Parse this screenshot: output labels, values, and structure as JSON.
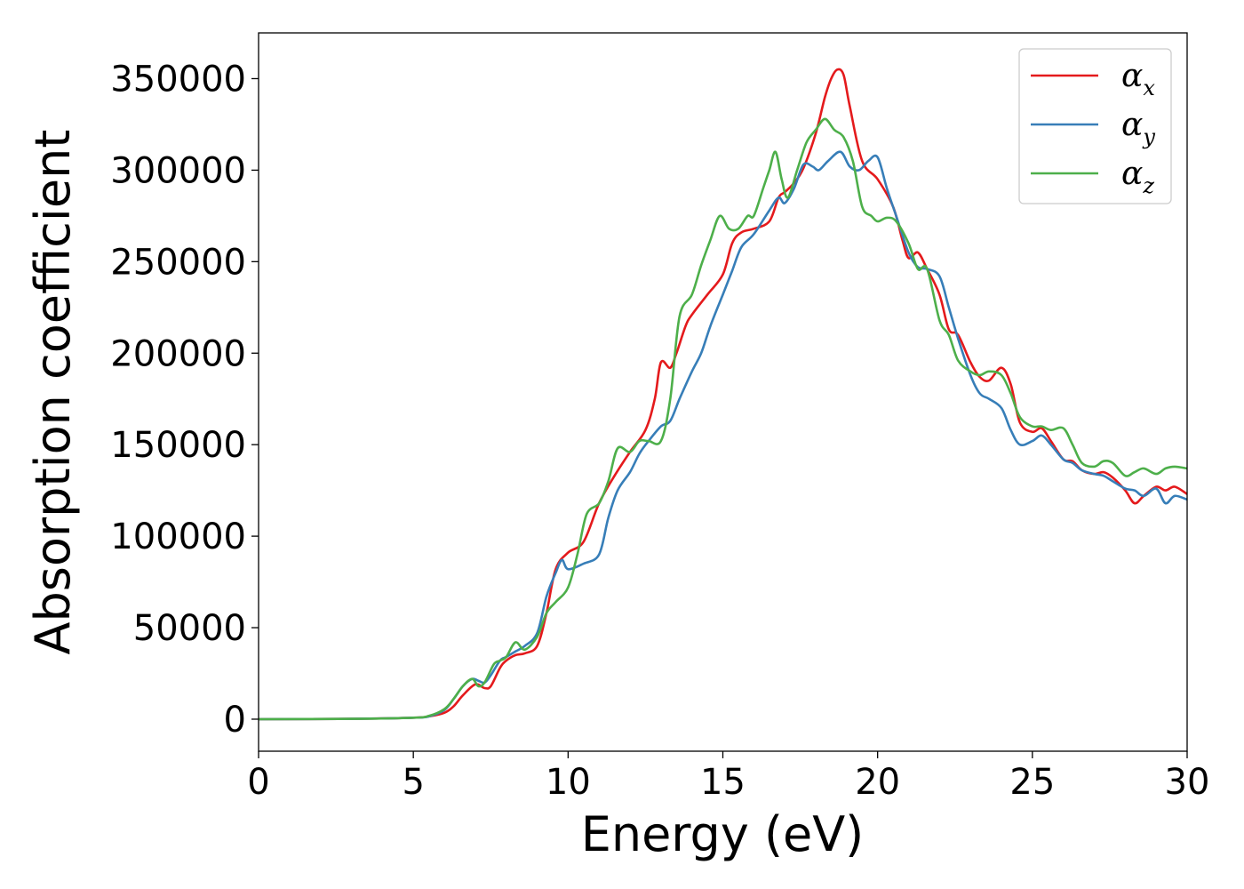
{
  "chart_data": {
    "type": "line",
    "title": "",
    "xlabel": "Energy (eV)",
    "ylabel": "Absorption coefficient",
    "xlim": [
      0,
      30
    ],
    "ylim": [
      -17500,
      375000
    ],
    "xticks": [
      0,
      5,
      10,
      15,
      20,
      25,
      30
    ],
    "yticks": [
      0,
      50000,
      100000,
      150000,
      200000,
      250000,
      300000,
      350000
    ],
    "grid": false,
    "legend_position": "top-right",
    "series": [
      {
        "name": "αx",
        "legend_base": "α",
        "legend_sub": "x",
        "color": "#e41a1c",
        "x": [
          0,
          3,
          5,
          5.5,
          6,
          6.3,
          6.6,
          7,
          7.3,
          7.5,
          7.8,
          8,
          8.3,
          8.6,
          9,
          9.3,
          9.6,
          10,
          10.5,
          11,
          11.5,
          12,
          12.5,
          12.8,
          13,
          13.3,
          13.5,
          13.8,
          14,
          14.5,
          15,
          15.3,
          15.6,
          16,
          16.5,
          16.8,
          17,
          17.3,
          17.6,
          18,
          18.3,
          18.5,
          18.7,
          18.9,
          19.1,
          19.5,
          20,
          20.5,
          20.8,
          21,
          21.3,
          21.6,
          22,
          22.3,
          22.6,
          23,
          23.3,
          23.6,
          24,
          24.3,
          24.6,
          25,
          25.3,
          25.6,
          26,
          26.3,
          26.6,
          27,
          27.3,
          27.6,
          28,
          28.3,
          28.6,
          29,
          29.3,
          29.6,
          30
        ],
        "y": [
          0,
          200,
          800,
          1500,
          3500,
          7000,
          13000,
          19000,
          17000,
          18000,
          28000,
          32000,
          35000,
          36000,
          40000,
          58000,
          82000,
          91000,
          97000,
          118000,
          133000,
          146000,
          158000,
          175000,
          195000,
          192000,
          200000,
          215000,
          221000,
          232000,
          243000,
          260000,
          266000,
          268000,
          272000,
          285000,
          288000,
          293000,
          301000,
          320000,
          340000,
          350000,
          355000,
          352000,
          335000,
          305000,
          295000,
          280000,
          262000,
          252000,
          255000,
          246000,
          232000,
          213000,
          210000,
          195000,
          187000,
          185000,
          192000,
          183000,
          162000,
          157000,
          159000,
          152000,
          142000,
          141000,
          136000,
          134000,
          135000,
          132000,
          125000,
          118000,
          122000,
          127000,
          125000,
          127000,
          123000
        ]
      },
      {
        "name": "αy",
        "legend_base": "α",
        "legend_sub": "y",
        "color": "#377eb8",
        "x": [
          0,
          3,
          5,
          5.5,
          6,
          6.3,
          6.6,
          6.9,
          7.1,
          7.3,
          7.5,
          7.8,
          8,
          8.3,
          8.6,
          9,
          9.3,
          9.6,
          9.8,
          10,
          10.5,
          11,
          11.3,
          11.6,
          12,
          12.3,
          12.6,
          13,
          13.3,
          13.6,
          14,
          14.3,
          14.6,
          15,
          15.3,
          15.6,
          16,
          16.5,
          16.8,
          17,
          17.3,
          17.6,
          17.9,
          18.1,
          18.4,
          18.8,
          19.1,
          19.4,
          19.7,
          20,
          20.3,
          20.6,
          21,
          21.3,
          21.6,
          22,
          22.3,
          22.6,
          23,
          23.3,
          23.6,
          24,
          24.3,
          24.6,
          25,
          25.3,
          25.6,
          26,
          26.3,
          26.6,
          27,
          27.3,
          27.6,
          28,
          28.3,
          28.6,
          29,
          29.3,
          29.6,
          30
        ],
        "y": [
          0,
          200,
          800,
          1500,
          5000,
          11000,
          18000,
          22000,
          21000,
          20000,
          24000,
          32000,
          34000,
          37000,
          40000,
          47000,
          67000,
          80000,
          87000,
          82000,
          85000,
          90000,
          110000,
          125000,
          135000,
          145000,
          152000,
          160000,
          163000,
          175000,
          190000,
          200000,
          215000,
          232000,
          245000,
          258000,
          265000,
          278000,
          285000,
          282000,
          290000,
          303000,
          302000,
          300000,
          305000,
          310000,
          302000,
          300000,
          305000,
          307000,
          290000,
          275000,
          255000,
          247000,
          246000,
          242000,
          225000,
          208000,
          188000,
          178000,
          175000,
          170000,
          158000,
          150000,
          152000,
          155000,
          150000,
          142000,
          140000,
          136000,
          134000,
          133000,
          130000,
          126000,
          125000,
          122000,
          126000,
          118000,
          122000,
          120000
        ]
      },
      {
        "name": "αz",
        "legend_base": "α",
        "legend_sub": "z",
        "color": "#4daf4a",
        "x": [
          0,
          3,
          5,
          5.5,
          6,
          6.3,
          6.6,
          6.9,
          7.1,
          7.3,
          7.6,
          7.8,
          8,
          8.3,
          8.6,
          9,
          9.3,
          9.6,
          10,
          10.3,
          10.6,
          11,
          11.3,
          11.6,
          12,
          12.3,
          12.6,
          13,
          13.3,
          13.6,
          14,
          14.3,
          14.6,
          14.9,
          15.2,
          15.5,
          15.8,
          16,
          16.3,
          16.5,
          16.7,
          16.9,
          17.1,
          17.4,
          17.7,
          18,
          18.3,
          18.6,
          18.9,
          19.2,
          19.5,
          19.8,
          20,
          20.3,
          20.6,
          21,
          21.3,
          21.6,
          22,
          22.3,
          22.6,
          23,
          23.3,
          23.6,
          24,
          24.3,
          24.6,
          25,
          25.3,
          25.6,
          26,
          26.3,
          26.6,
          27,
          27.3,
          27.6,
          28,
          28.3,
          28.6,
          29,
          29.3,
          29.6,
          30
        ],
        "y": [
          0,
          200,
          800,
          1800,
          5500,
          11000,
          18000,
          22000,
          18000,
          20000,
          30000,
          32000,
          34000,
          42000,
          38000,
          45000,
          58000,
          64000,
          72000,
          90000,
          112000,
          118000,
          130000,
          148000,
          146000,
          152000,
          152000,
          152000,
          175000,
          220000,
          232000,
          248000,
          262000,
          275000,
          268000,
          268000,
          275000,
          275000,
          290000,
          300000,
          310000,
          295000,
          285000,
          300000,
          315000,
          322000,
          328000,
          322000,
          318000,
          305000,
          280000,
          275000,
          272000,
          274000,
          272000,
          260000,
          246000,
          246000,
          218000,
          210000,
          196000,
          190000,
          188000,
          190000,
          188000,
          178000,
          165000,
          160000,
          160000,
          158000,
          159000,
          150000,
          140000,
          138000,
          141000,
          140000,
          133000,
          135000,
          137000,
          134000,
          137000,
          138000,
          137000
        ]
      }
    ]
  }
}
